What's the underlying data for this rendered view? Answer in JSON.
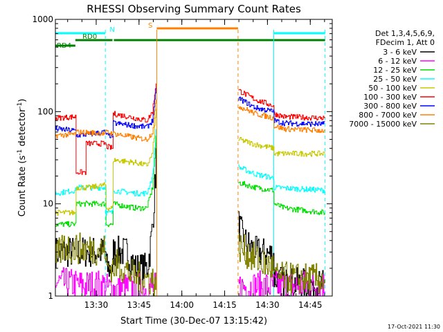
{
  "chart_data": {
    "type": "line",
    "title": "RHESSI Observing Summary Count Rates",
    "xlabel": "Start Time (30-Dec-07 13:15:42)",
    "ylabel_main": "Count Rate (s",
    "ylabel_sup1": "-1",
    "ylabel_mid": " detector",
    "ylabel_sup2": "-1",
    "ylabel_end": ")",
    "yscale": "log",
    "ylim": [
      1,
      1000
    ],
    "xlim_minutes": [
      0,
      97
    ],
    "y_ticks": [
      {
        "value": 1,
        "label": "1"
      },
      {
        "value": 10,
        "label": "10"
      },
      {
        "value": 100,
        "label": "100"
      },
      {
        "value": 1000,
        "label": "1000"
      }
    ],
    "x_ticks": [
      {
        "minute": 14.3,
        "label": "13:30"
      },
      {
        "minute": 29.3,
        "label": "13:45"
      },
      {
        "minute": 44.3,
        "label": "14:00"
      },
      {
        "minute": 59.3,
        "label": "14:15"
      },
      {
        "minute": 74.3,
        "label": "14:30"
      },
      {
        "minute": 89.3,
        "label": "14:45"
      }
    ],
    "legend": {
      "header1": "Det 1,3,4,5,6,9,",
      "header2": "FDecim 1, Att 0",
      "placement": "right",
      "entries": [
        {
          "label": "3 - 6 keV",
          "color": "#000000"
        },
        {
          "label": "6 - 12 keV",
          "color": "#ff00ff"
        },
        {
          "label": "12 - 25 keV",
          "color": "#00dd00"
        },
        {
          "label": "25 - 50 keV",
          "color": "#00ffff"
        },
        {
          "label": "50 - 100 keV",
          "color": "#c8c800"
        },
        {
          "label": "100 - 300 keV",
          "color": "#ff0000"
        },
        {
          "label": "300 - 800 keV",
          "color": "#0000ff"
        },
        {
          "label": "800 - 7000 keV",
          "color": "#ff8000"
        },
        {
          "label": "7000 - 15000 keV",
          "color": "#808000"
        }
      ]
    },
    "flag_bars": [
      {
        "label": "N",
        "color": "#00ffff",
        "segments": [
          [
            0,
            17.5
          ],
          [
            76.5,
            94.5
          ]
        ]
      },
      {
        "label": "S",
        "color": "#ff8000",
        "segments": [
          [
            35.5,
            64
          ]
        ]
      },
      {
        "label": "RD0",
        "color": "#008000",
        "segments": [
          [
            7,
            20
          ],
          [
            20.5,
            94.5
          ]
        ]
      },
      {
        "label": "RD4",
        "color": "#008000",
        "segments": [
          [
            0,
            7
          ]
        ]
      }
    ],
    "vertical_markers": [
      {
        "minute": 17.5,
        "color": "#00ffff",
        "style": "dashed"
      },
      {
        "minute": 35.5,
        "color": "#ff8000",
        "style": "solid"
      },
      {
        "minute": 64.0,
        "color": "#ff8000",
        "style": "dashed"
      },
      {
        "minute": 76.5,
        "color": "#00ffff",
        "style": "solid"
      },
      {
        "minute": 94.5,
        "color": "#00ffff",
        "style": "dashed"
      }
    ],
    "gap_minutes": [
      35.5,
      64
    ],
    "series": [
      {
        "name": "3 - 6 keV",
        "color": "#000000",
        "x": [
          0,
          17.5,
          17.6,
          20,
          20.1,
          25,
          28,
          32,
          33,
          34,
          35,
          35.4,
          64,
          64.1,
          66,
          70,
          76.5,
          76.6,
          80,
          94.5
        ],
        "y": [
          3,
          3,
          2,
          2,
          3,
          3,
          2,
          2,
          3,
          6,
          20,
          60,
          3,
          6,
          4,
          3,
          2.8,
          1.6,
          1.4,
          1.3
        ]
      },
      {
        "name": "6 - 12 keV",
        "color": "#ff00ff",
        "x": [
          0,
          10,
          17.5,
          17.6,
          94.5
        ],
        "y": [
          1.4,
          1.3,
          1.3,
          1.2,
          1.3
        ]
      },
      {
        "name": "12 - 25 keV",
        "color": "#00dd00",
        "x": [
          0,
          7,
          7.1,
          17.5,
          17.6,
          20,
          20.1,
          28,
          32,
          34,
          35.4,
          64,
          64.1,
          70,
          76.5,
          76.6,
          80,
          94.5
        ],
        "y": [
          6,
          6,
          10,
          10,
          6,
          6,
          10,
          9,
          9,
          15,
          60,
          15,
          17,
          15,
          14,
          10,
          9,
          8
        ]
      },
      {
        "name": "25 - 50 keV",
        "color": "#00ffff",
        "x": [
          0,
          7,
          7.1,
          17.5,
          17.6,
          20,
          20.1,
          28,
          32,
          34,
          35.4,
          64,
          64.1,
          70,
          76.5,
          76.6,
          94.5
        ],
        "y": [
          13,
          14,
          15,
          15,
          8,
          8,
          14,
          13,
          13,
          20,
          80,
          22,
          25,
          21,
          19,
          15,
          14
        ]
      },
      {
        "name": "50 - 100 keV",
        "color": "#c8c800",
        "x": [
          0,
          7,
          7.1,
          12,
          17.5,
          17.6,
          20,
          20.1,
          28,
          32,
          34,
          35.4,
          64,
          64.1,
          70,
          76.5,
          76.6,
          80,
          94.5
        ],
        "y": [
          8,
          8,
          15,
          15,
          16,
          9,
          9,
          30,
          28,
          26,
          35,
          120,
          40,
          50,
          44,
          40,
          35,
          35,
          35
        ]
      },
      {
        "name": "100 - 300 keV",
        "color": "#ff0000",
        "x": [
          0,
          7,
          7.1,
          10.5,
          10.6,
          17.5,
          17.6,
          20,
          20.1,
          28,
          32,
          34,
          35.4,
          64,
          64.1,
          70,
          76.5,
          76.6,
          80,
          94.5
        ],
        "y": [
          85,
          88,
          22,
          22,
          45,
          45,
          42,
          40,
          95,
          85,
          80,
          100,
          230,
          150,
          170,
          135,
          115,
          95,
          88,
          85
        ]
      },
      {
        "name": "300 - 800 keV",
        "color": "#0000ff",
        "x": [
          0,
          7,
          7.1,
          12,
          17.5,
          17.6,
          20,
          20.1,
          28,
          32,
          34,
          35.4,
          64,
          64.1,
          70,
          76.5,
          76.6,
          80,
          94.5
        ],
        "y": [
          65,
          62,
          55,
          57,
          60,
          55,
          55,
          75,
          70,
          68,
          80,
          190,
          120,
          140,
          110,
          100,
          80,
          75,
          73
        ]
      },
      {
        "name": "800 - 7000 keV",
        "color": "#ff8000",
        "x": [
          0,
          7,
          7.1,
          17.5,
          17.6,
          20,
          20.1,
          28,
          32,
          34,
          35.4,
          64,
          64.1,
          70,
          76.5,
          76.6,
          80,
          94.5
        ],
        "y": [
          55,
          57,
          60,
          58,
          60,
          58,
          58,
          52,
          50,
          60,
          150,
          100,
          115,
          95,
          85,
          70,
          65,
          62
        ]
      },
      {
        "name": "7000 - 15000 keV",
        "color": "#808000",
        "x": [
          0,
          3,
          5,
          17.5,
          17.6,
          22,
          28,
          34,
          35.4,
          64,
          64.1,
          70,
          76.5,
          76.6,
          94.5
        ],
        "y": [
          2.5,
          3.5,
          3.3,
          3.2,
          2.0,
          2.2,
          1.6,
          1.5,
          1.4,
          2.2,
          3.5,
          2.5,
          2.0,
          1.6,
          1.5
        ]
      }
    ],
    "footer_date": "17-Oct-2021 11:30"
  }
}
